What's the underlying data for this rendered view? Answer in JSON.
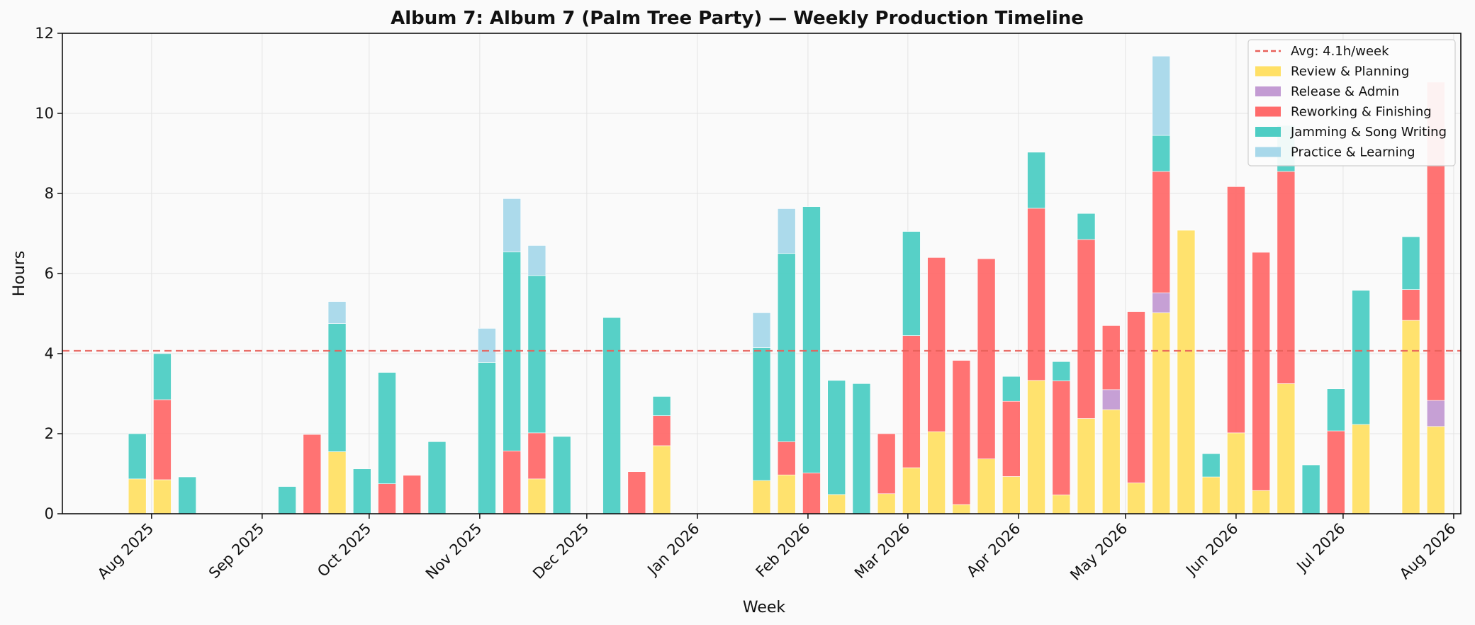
{
  "chart_data": {
    "type": "bar",
    "stacked": true,
    "title": "Album 7: Album 7 (Palm Tree Party) — Weekly Production Timeline",
    "xlabel": "Week",
    "ylabel": "Hours",
    "ylim": [
      0,
      12
    ],
    "yticks": [
      0,
      2,
      4,
      6,
      8,
      10,
      12
    ],
    "xlim": [
      "2025-07-07",
      "2026-08-03"
    ],
    "xticks": [
      {
        "date": "2025-08-01",
        "label": "Aug 2025"
      },
      {
        "date": "2025-09-01",
        "label": "Sep 2025"
      },
      {
        "date": "2025-10-01",
        "label": "Oct 2025"
      },
      {
        "date": "2025-11-01",
        "label": "Nov 2025"
      },
      {
        "date": "2025-12-01",
        "label": "Dec 2025"
      },
      {
        "date": "2026-01-01",
        "label": "Jan 2026"
      },
      {
        "date": "2026-02-01",
        "label": "Feb 2026"
      },
      {
        "date": "2026-03-01",
        "label": "Mar 2026"
      },
      {
        "date": "2026-04-01",
        "label": "Apr 2026"
      },
      {
        "date": "2026-05-01",
        "label": "May 2026"
      },
      {
        "date": "2026-06-01",
        "label": "Jun 2026"
      },
      {
        "date": "2026-07-01",
        "label": "Jul 2026"
      },
      {
        "date": "2026-08-01",
        "label": "Aug 2026"
      }
    ],
    "grid": true,
    "legend_position": "top-right",
    "average_line": {
      "value": 4.07,
      "label": "Avg: 4.1h/week",
      "color": "#e8615a"
    },
    "series": [
      {
        "name": "Review & Planning",
        "color": "#ffe066"
      },
      {
        "name": "Release & Admin",
        "color": "#c39bd3"
      },
      {
        "name": "Reworking & Finishing",
        "color": "#ff6b6b"
      },
      {
        "name": "Jamming & Song Writing",
        "color": "#4ecdc4"
      },
      {
        "name": "Practice & Learning",
        "color": "#a8d8ea"
      }
    ],
    "weeks": [
      {
        "date": "2025-07-28",
        "values": [
          0.87,
          0,
          0,
          1.13,
          0
        ]
      },
      {
        "date": "2025-08-04",
        "values": [
          0.85,
          0,
          2.0,
          1.15,
          0
        ]
      },
      {
        "date": "2025-08-11",
        "values": [
          0,
          0,
          0,
          0.92,
          0
        ]
      },
      {
        "date": "2025-09-08",
        "values": [
          0,
          0,
          0,
          0.68,
          0
        ]
      },
      {
        "date": "2025-09-15",
        "values": [
          0,
          0,
          1.98,
          0,
          0
        ]
      },
      {
        "date": "2025-09-22",
        "values": [
          1.55,
          0,
          0,
          3.2,
          0.55
        ]
      },
      {
        "date": "2025-09-29",
        "values": [
          0,
          0,
          0,
          1.12,
          0
        ]
      },
      {
        "date": "2025-10-06",
        "values": [
          0,
          0,
          0.75,
          2.78,
          0
        ]
      },
      {
        "date": "2025-10-13",
        "values": [
          0,
          0,
          0.96,
          0,
          0
        ]
      },
      {
        "date": "2025-10-20",
        "values": [
          0,
          0,
          0,
          1.8,
          0
        ]
      },
      {
        "date": "2025-11-03",
        "values": [
          0,
          0,
          0,
          3.78,
          0.85
        ]
      },
      {
        "date": "2025-11-10",
        "values": [
          0,
          0,
          1.57,
          4.97,
          1.33
        ]
      },
      {
        "date": "2025-11-17",
        "values": [
          0.87,
          0,
          1.15,
          3.93,
          0.75
        ]
      },
      {
        "date": "2025-11-24",
        "values": [
          0,
          0,
          0,
          1.93,
          0
        ]
      },
      {
        "date": "2025-12-08",
        "values": [
          0,
          0,
          0,
          4.9,
          0
        ]
      },
      {
        "date": "2025-12-15",
        "values": [
          0,
          0,
          1.05,
          0,
          0
        ]
      },
      {
        "date": "2025-12-22",
        "values": [
          1.7,
          0,
          0.75,
          0.48,
          0
        ]
      },
      {
        "date": "2026-01-19",
        "values": [
          0.83,
          0,
          0,
          3.32,
          0.87
        ]
      },
      {
        "date": "2026-01-26",
        "values": [
          0.97,
          0,
          0.83,
          4.7,
          1.12
        ]
      },
      {
        "date": "2026-02-02",
        "values": [
          0,
          0,
          1.02,
          6.65,
          0
        ]
      },
      {
        "date": "2026-02-09",
        "values": [
          0.48,
          0,
          0,
          2.85,
          0
        ]
      },
      {
        "date": "2026-02-16",
        "values": [
          0,
          0,
          0,
          3.25,
          0
        ]
      },
      {
        "date": "2026-02-23",
        "values": [
          0.5,
          0,
          1.5,
          0,
          0
        ]
      },
      {
        "date": "2026-03-02",
        "values": [
          1.15,
          0,
          3.3,
          2.6,
          0
        ]
      },
      {
        "date": "2026-03-09",
        "values": [
          2.05,
          0,
          4.35,
          0,
          0
        ]
      },
      {
        "date": "2026-03-16",
        "values": [
          0.23,
          0,
          3.6,
          0,
          0
        ]
      },
      {
        "date": "2026-03-23",
        "values": [
          1.37,
          0,
          5.0,
          0,
          0
        ]
      },
      {
        "date": "2026-03-30",
        "values": [
          0.93,
          0,
          1.88,
          0.62,
          0
        ]
      },
      {
        "date": "2026-04-06",
        "values": [
          3.33,
          0,
          4.3,
          1.4,
          0
        ]
      },
      {
        "date": "2026-04-13",
        "values": [
          0.47,
          0,
          2.85,
          0.48,
          0
        ]
      },
      {
        "date": "2026-04-20",
        "values": [
          2.38,
          0,
          4.47,
          0.65,
          0
        ]
      },
      {
        "date": "2026-04-27",
        "values": [
          2.6,
          0.5,
          1.6,
          0,
          0
        ]
      },
      {
        "date": "2026-05-04",
        "values": [
          0.77,
          0,
          4.28,
          0,
          0
        ]
      },
      {
        "date": "2026-05-11",
        "values": [
          5.02,
          0.5,
          3.03,
          0.9,
          1.98
        ]
      },
      {
        "date": "2026-05-18",
        "values": [
          7.08,
          0,
          0,
          0,
          0
        ]
      },
      {
        "date": "2026-05-25",
        "values": [
          0.92,
          0,
          0,
          0.58,
          0
        ]
      },
      {
        "date": "2026-06-01",
        "values": [
          2.02,
          0,
          6.15,
          0,
          0
        ]
      },
      {
        "date": "2026-06-08",
        "values": [
          0.58,
          0,
          5.95,
          0,
          0
        ]
      },
      {
        "date": "2026-06-15",
        "values": [
          3.25,
          0,
          5.3,
          1.15,
          0
        ]
      },
      {
        "date": "2026-06-22",
        "values": [
          0,
          0,
          0,
          1.22,
          0
        ]
      },
      {
        "date": "2026-06-29",
        "values": [
          0,
          0,
          2.07,
          1.05,
          0
        ]
      },
      {
        "date": "2026-07-06",
        "values": [
          2.23,
          0,
          0,
          3.35,
          0
        ]
      },
      {
        "date": "2026-07-20",
        "values": [
          4.83,
          0,
          0.77,
          1.32,
          0
        ]
      },
      {
        "date": "2026-07-27",
        "values": [
          2.18,
          0.65,
          7.95,
          0,
          0
        ]
      }
    ]
  }
}
